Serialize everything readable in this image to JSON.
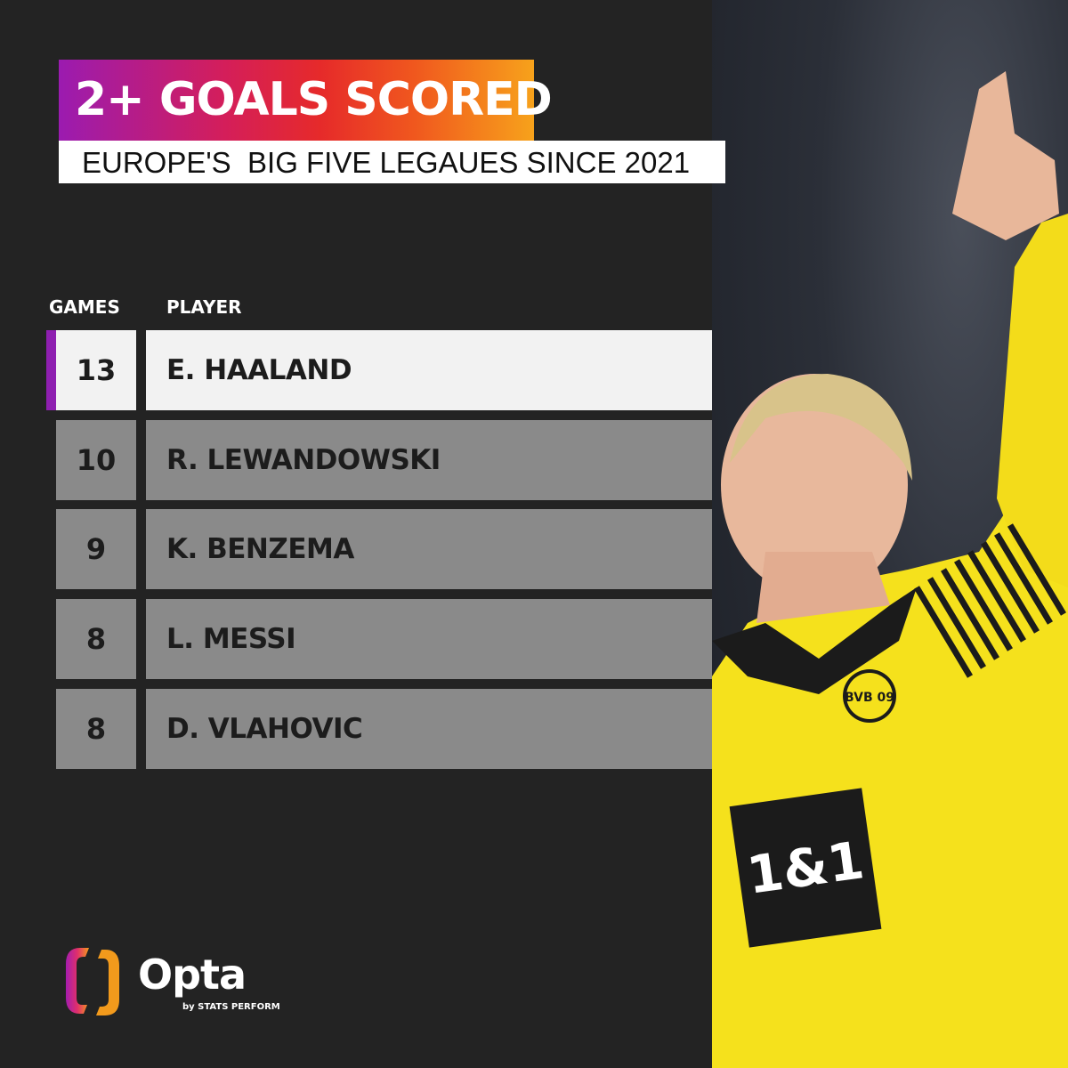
{
  "header": {
    "title": "2+ GOALS SCORED",
    "subtitle": "EUROPE'S  BIG FIVE LEGAUES SINCE 2021"
  },
  "table": {
    "columns": [
      "GAMES",
      "PLAYER"
    ],
    "rows": [
      {
        "games": "13",
        "player": "E. HAALAND",
        "highlighted": true
      },
      {
        "games": "10",
        "player": "R. LEWANDOWSKI"
      },
      {
        "games": "9",
        "player": "K. BENZEMA"
      },
      {
        "games": "8",
        "player": "L. MESSI"
      },
      {
        "games": "8",
        "player": "D. VLAHOVIC"
      }
    ]
  },
  "branding": {
    "logo_text": "Opta",
    "logo_subtext": "by STATS PERFORM"
  },
  "photo": {
    "jersey_text": "1&1",
    "badge_text": "BVB 09"
  },
  "colors": {
    "background": "#232323",
    "accent": "#8e1fb0",
    "row": "#8a8a8a",
    "highlight_row": "#f2f2f2"
  }
}
